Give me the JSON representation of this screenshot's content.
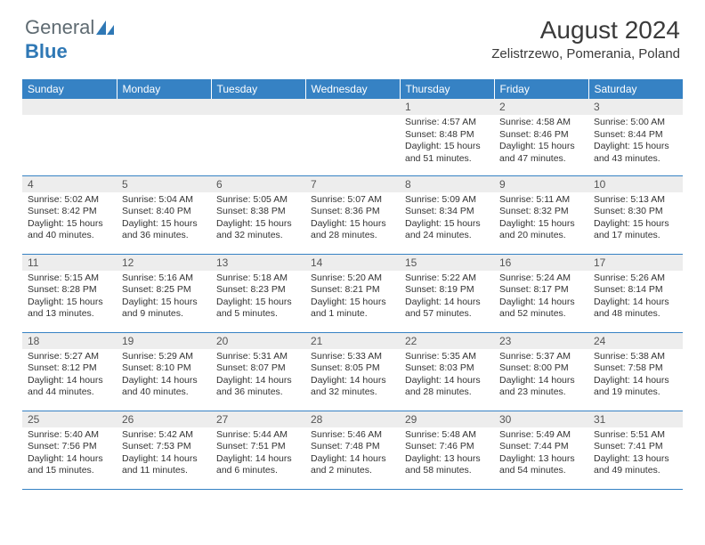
{
  "logo": {
    "text1": "General",
    "text2": "Blue"
  },
  "title": "August 2024",
  "location": "Zelistrzewo, Pomerania, Poland",
  "colors": {
    "header_bg": "#3682c4",
    "header_fg": "#ffffff",
    "daynum_bg": "#ededed",
    "rule": "#3682c4",
    "logo_general": "#5f6b72",
    "logo_blue": "#2f78b5"
  },
  "day_headers": [
    "Sunday",
    "Monday",
    "Tuesday",
    "Wednesday",
    "Thursday",
    "Friday",
    "Saturday"
  ],
  "weeks": [
    [
      null,
      null,
      null,
      null,
      {
        "n": "1",
        "sr": "4:57 AM",
        "ss": "8:48 PM",
        "dl": "15 hours and 51 minutes."
      },
      {
        "n": "2",
        "sr": "4:58 AM",
        "ss": "8:46 PM",
        "dl": "15 hours and 47 minutes."
      },
      {
        "n": "3",
        "sr": "5:00 AM",
        "ss": "8:44 PM",
        "dl": "15 hours and 43 minutes."
      }
    ],
    [
      {
        "n": "4",
        "sr": "5:02 AM",
        "ss": "8:42 PM",
        "dl": "15 hours and 40 minutes."
      },
      {
        "n": "5",
        "sr": "5:04 AM",
        "ss": "8:40 PM",
        "dl": "15 hours and 36 minutes."
      },
      {
        "n": "6",
        "sr": "5:05 AM",
        "ss": "8:38 PM",
        "dl": "15 hours and 32 minutes."
      },
      {
        "n": "7",
        "sr": "5:07 AM",
        "ss": "8:36 PM",
        "dl": "15 hours and 28 minutes."
      },
      {
        "n": "8",
        "sr": "5:09 AM",
        "ss": "8:34 PM",
        "dl": "15 hours and 24 minutes."
      },
      {
        "n": "9",
        "sr": "5:11 AM",
        "ss": "8:32 PM",
        "dl": "15 hours and 20 minutes."
      },
      {
        "n": "10",
        "sr": "5:13 AM",
        "ss": "8:30 PM",
        "dl": "15 hours and 17 minutes."
      }
    ],
    [
      {
        "n": "11",
        "sr": "5:15 AM",
        "ss": "8:28 PM",
        "dl": "15 hours and 13 minutes."
      },
      {
        "n": "12",
        "sr": "5:16 AM",
        "ss": "8:25 PM",
        "dl": "15 hours and 9 minutes."
      },
      {
        "n": "13",
        "sr": "5:18 AM",
        "ss": "8:23 PM",
        "dl": "15 hours and 5 minutes."
      },
      {
        "n": "14",
        "sr": "5:20 AM",
        "ss": "8:21 PM",
        "dl": "15 hours and 1 minute."
      },
      {
        "n": "15",
        "sr": "5:22 AM",
        "ss": "8:19 PM",
        "dl": "14 hours and 57 minutes."
      },
      {
        "n": "16",
        "sr": "5:24 AM",
        "ss": "8:17 PM",
        "dl": "14 hours and 52 minutes."
      },
      {
        "n": "17",
        "sr": "5:26 AM",
        "ss": "8:14 PM",
        "dl": "14 hours and 48 minutes."
      }
    ],
    [
      {
        "n": "18",
        "sr": "5:27 AM",
        "ss": "8:12 PM",
        "dl": "14 hours and 44 minutes."
      },
      {
        "n": "19",
        "sr": "5:29 AM",
        "ss": "8:10 PM",
        "dl": "14 hours and 40 minutes."
      },
      {
        "n": "20",
        "sr": "5:31 AM",
        "ss": "8:07 PM",
        "dl": "14 hours and 36 minutes."
      },
      {
        "n": "21",
        "sr": "5:33 AM",
        "ss": "8:05 PM",
        "dl": "14 hours and 32 minutes."
      },
      {
        "n": "22",
        "sr": "5:35 AM",
        "ss": "8:03 PM",
        "dl": "14 hours and 28 minutes."
      },
      {
        "n": "23",
        "sr": "5:37 AM",
        "ss": "8:00 PM",
        "dl": "14 hours and 23 minutes."
      },
      {
        "n": "24",
        "sr": "5:38 AM",
        "ss": "7:58 PM",
        "dl": "14 hours and 19 minutes."
      }
    ],
    [
      {
        "n": "25",
        "sr": "5:40 AM",
        "ss": "7:56 PM",
        "dl": "14 hours and 15 minutes."
      },
      {
        "n": "26",
        "sr": "5:42 AM",
        "ss": "7:53 PM",
        "dl": "14 hours and 11 minutes."
      },
      {
        "n": "27",
        "sr": "5:44 AM",
        "ss": "7:51 PM",
        "dl": "14 hours and 6 minutes."
      },
      {
        "n": "28",
        "sr": "5:46 AM",
        "ss": "7:48 PM",
        "dl": "14 hours and 2 minutes."
      },
      {
        "n": "29",
        "sr": "5:48 AM",
        "ss": "7:46 PM",
        "dl": "13 hours and 58 minutes."
      },
      {
        "n": "30",
        "sr": "5:49 AM",
        "ss": "7:44 PM",
        "dl": "13 hours and 54 minutes."
      },
      {
        "n": "31",
        "sr": "5:51 AM",
        "ss": "7:41 PM",
        "dl": "13 hours and 49 minutes."
      }
    ]
  ],
  "labels": {
    "sunrise": "Sunrise:",
    "sunset": "Sunset:",
    "daylight": "Daylight:"
  }
}
